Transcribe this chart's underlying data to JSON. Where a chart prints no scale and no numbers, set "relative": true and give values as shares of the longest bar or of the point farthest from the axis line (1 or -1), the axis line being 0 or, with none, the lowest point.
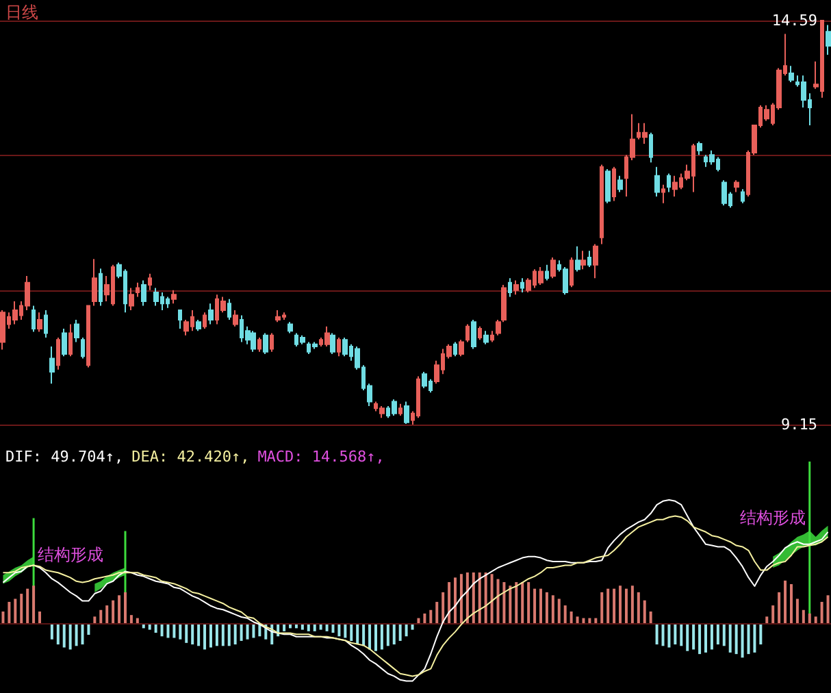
{
  "chart_data": [
    {
      "type": "candlestick",
      "title": "日线",
      "categories": [
        null,
        null,
        null,
        null,
        null,
        null,
        null,
        null,
        null,
        null,
        null,
        null,
        null,
        null,
        null,
        null,
        null,
        null,
        null,
        null,
        null,
        null,
        null,
        null,
        null,
        null,
        null,
        null,
        null,
        null,
        null,
        null,
        null,
        null,
        null,
        null,
        null,
        null,
        null,
        null,
        null,
        null,
        null,
        null,
        null,
        null,
        null,
        null,
        null,
        null,
        null,
        null,
        null,
        null,
        null,
        null,
        null,
        null,
        null,
        null,
        null,
        null,
        null,
        null,
        null,
        null,
        null,
        null,
        null,
        null,
        null,
        null,
        null,
        null,
        null,
        null,
        null,
        null,
        null,
        null,
        null,
        null,
        null,
        null,
        null,
        null,
        null,
        null,
        null,
        null,
        null,
        null,
        null,
        null,
        null,
        null,
        null,
        null,
        null,
        null,
        null,
        null,
        null,
        null,
        null,
        null,
        null,
        null,
        null,
        null,
        null,
        null,
        null,
        null,
        null,
        null,
        null,
        null,
        null,
        null,
        null,
        null,
        null,
        null,
        null,
        null,
        null,
        null,
        null,
        null,
        null,
        null,
        null,
        null,
        null,
        null
      ],
      "ohlc": [
        [
          10.26,
          10.69,
          10.16,
          10.66
        ],
        [
          10.5,
          10.66,
          10.44,
          10.6
        ],
        [
          10.56,
          10.81,
          10.5,
          10.69
        ],
        [
          10.62,
          10.81,
          10.56,
          10.75
        ],
        [
          10.75,
          11.15,
          10.69,
          11.06
        ],
        [
          10.69,
          10.75,
          10.4,
          10.44
        ],
        [
          10.44,
          10.66,
          10.4,
          10.56
        ],
        [
          10.62,
          10.69,
          10.32,
          10.38
        ],
        [
          10.04,
          10.2,
          9.7,
          9.86
        ],
        [
          9.95,
          10.32,
          9.89,
          10.29
        ],
        [
          10.38,
          10.44,
          10.07,
          10.1
        ],
        [
          10.1,
          10.5,
          10.07,
          10.38
        ],
        [
          10.5,
          10.56,
          10.26,
          10.32
        ],
        [
          10.29,
          10.32,
          10.04,
          10.07
        ],
        [
          9.95,
          10.75,
          9.92,
          10.75
        ],
        [
          10.81,
          11.38,
          10.75,
          11.12
        ],
        [
          11.18,
          11.25,
          10.75,
          10.81
        ],
        [
          10.9,
          11.15,
          10.81,
          11.03
        ],
        [
          10.78,
          11.3,
          10.75,
          11.27
        ],
        [
          11.3,
          11.33,
          11.12,
          11.15
        ],
        [
          11.21,
          11.24,
          10.66,
          10.78
        ],
        [
          10.75,
          10.99,
          10.69,
          10.9
        ],
        [
          10.93,
          11.06,
          10.87,
          10.99
        ],
        [
          11.03,
          11.09,
          10.75,
          10.81
        ],
        [
          11.03,
          11.18,
          10.96,
          11.12
        ],
        [
          10.93,
          10.99,
          10.75,
          10.81
        ],
        [
          10.87,
          10.93,
          10.69,
          10.78
        ],
        [
          10.84,
          10.87,
          10.72,
          10.78
        ],
        [
          10.84,
          10.96,
          10.78,
          10.9
        ],
        [
          10.69,
          10.69,
          10.44,
          10.56
        ],
        [
          10.41,
          10.56,
          10.35,
          10.53
        ],
        [
          10.47,
          10.69,
          10.41,
          10.6
        ],
        [
          10.53,
          10.56,
          10.41,
          10.44
        ],
        [
          10.47,
          10.66,
          10.44,
          10.62
        ],
        [
          10.69,
          10.78,
          10.5,
          10.56
        ],
        [
          10.56,
          10.9,
          10.5,
          10.84
        ],
        [
          10.69,
          10.87,
          10.66,
          10.81
        ],
        [
          10.78,
          10.84,
          10.56,
          10.6
        ],
        [
          10.5,
          10.69,
          10.47,
          10.62
        ],
        [
          10.56,
          10.62,
          10.26,
          10.32
        ],
        [
          10.41,
          10.47,
          10.23,
          10.29
        ],
        [
          10.38,
          10.41,
          10.13,
          10.17
        ],
        [
          10.17,
          10.32,
          10.13,
          10.29
        ],
        [
          10.35,
          10.38,
          10.1,
          10.13
        ],
        [
          10.17,
          10.38,
          10.13,
          10.35
        ],
        [
          10.56,
          10.69,
          10.53,
          10.6
        ],
        [
          10.6,
          10.66,
          10.56,
          10.62
        ],
        [
          10.5,
          10.53,
          10.38,
          10.41
        ],
        [
          10.35,
          10.38,
          10.2,
          10.23
        ],
        [
          10.32,
          10.35,
          10.23,
          10.26
        ],
        [
          10.23,
          10.26,
          10.1,
          10.13
        ],
        [
          10.23,
          10.26,
          10.17,
          10.2
        ],
        [
          10.23,
          10.32,
          10.2,
          10.29
        ],
        [
          10.23,
          10.47,
          10.2,
          10.38
        ],
        [
          10.35,
          10.38,
          10.1,
          10.13
        ],
        [
          10.13,
          10.32,
          10.07,
          10.29
        ],
        [
          10.29,
          10.32,
          10.07,
          10.1
        ],
        [
          10.2,
          10.23,
          10.01,
          10.07
        ],
        [
          10.17,
          10.2,
          9.89,
          9.92
        ],
        [
          9.92,
          9.95,
          9.61,
          9.64
        ],
        [
          9.67,
          9.7,
          9.4,
          9.46
        ],
        [
          9.37,
          9.46,
          9.33,
          9.43
        ],
        [
          9.3,
          9.4,
          9.24,
          9.37
        ],
        [
          9.37,
          9.4,
          9.24,
          9.27
        ],
        [
          9.46,
          9.49,
          9.27,
          9.3
        ],
        [
          9.3,
          9.43,
          9.27,
          9.37
        ],
        [
          9.4,
          9.46,
          9.16,
          9.18
        ],
        [
          9.21,
          9.33,
          9.15,
          9.3
        ],
        [
          9.27,
          9.8,
          9.24,
          9.76
        ],
        [
          9.83,
          9.86,
          9.64,
          9.67
        ],
        [
          9.73,
          9.76,
          9.58,
          9.61
        ],
        [
          9.73,
          10.01,
          9.7,
          9.95
        ],
        [
          9.89,
          10.17,
          9.83,
          10.1
        ],
        [
          10.07,
          10.23,
          10.04,
          10.2
        ],
        [
          10.23,
          10.26,
          10.07,
          10.1
        ],
        [
          10.1,
          10.29,
          10.07,
          10.26
        ],
        [
          10.29,
          10.5,
          10.26,
          10.47
        ],
        [
          10.53,
          10.56,
          10.17,
          10.2
        ],
        [
          10.32,
          10.47,
          10.29,
          10.44
        ],
        [
          10.35,
          10.41,
          10.23,
          10.26
        ],
        [
          10.29,
          10.41,
          10.26,
          10.35
        ],
        [
          10.38,
          10.56,
          10.35,
          10.53
        ],
        [
          10.56,
          11.03,
          10.53,
          10.99
        ],
        [
          11.06,
          11.12,
          10.87,
          10.93
        ],
        [
          10.96,
          11.09,
          10.9,
          11.03
        ],
        [
          11.06,
          11.12,
          10.93,
          10.99
        ],
        [
          10.96,
          11.12,
          10.93,
          11.09
        ],
        [
          11.03,
          11.24,
          10.99,
          11.21
        ],
        [
          11.06,
          11.27,
          11.03,
          11.21
        ],
        [
          11.21,
          11.3,
          11.09,
          11.12
        ],
        [
          11.15,
          11.4,
          11.12,
          11.36
        ],
        [
          11.3,
          11.36,
          11.21,
          11.24
        ],
        [
          11.24,
          11.27,
          10.9,
          10.93
        ],
        [
          11.03,
          11.4,
          11.0,
          11.36
        ],
        [
          11.36,
          11.55,
          11.21,
          11.24
        ],
        [
          11.3,
          11.49,
          11.24,
          11.36
        ],
        [
          11.4,
          11.49,
          11.27,
          11.3
        ],
        [
          11.3,
          11.58,
          11.12,
          11.55
        ],
        [
          11.67,
          12.65,
          11.58,
          12.62
        ],
        [
          12.56,
          12.59,
          12.13,
          12.16
        ],
        [
          12.22,
          12.62,
          12.16,
          12.59
        ],
        [
          12.44,
          12.5,
          12.28,
          12.32
        ],
        [
          12.47,
          12.78,
          12.22,
          12.75
        ],
        [
          12.75,
          13.33,
          12.71,
          12.99
        ],
        [
          13.02,
          13.21,
          12.99,
          13.08
        ],
        [
          13.02,
          13.21,
          12.93,
          13.08
        ],
        [
          13.05,
          13.08,
          12.68,
          12.75
        ],
        [
          12.5,
          12.62,
          12.22,
          12.28
        ],
        [
          12.28,
          12.38,
          12.13,
          12.32
        ],
        [
          12.5,
          12.53,
          12.28,
          12.35
        ],
        [
          12.32,
          12.5,
          12.22,
          12.41
        ],
        [
          12.35,
          12.53,
          12.32,
          12.47
        ],
        [
          12.47,
          12.65,
          12.44,
          12.56
        ],
        [
          12.5,
          12.93,
          12.28,
          12.9
        ],
        [
          12.93,
          12.96,
          12.78,
          12.84
        ],
        [
          12.75,
          12.78,
          12.62,
          12.69
        ],
        [
          12.78,
          12.84,
          12.65,
          12.69
        ],
        [
          12.72,
          12.75,
          12.56,
          12.59
        ],
        [
          12.41,
          12.44,
          12.1,
          12.13
        ],
        [
          12.25,
          12.28,
          12.07,
          12.1
        ],
        [
          12.35,
          12.44,
          12.28,
          12.41
        ],
        [
          12.28,
          12.32,
          12.13,
          12.16
        ],
        [
          12.25,
          12.84,
          12.22,
          12.81
        ],
        [
          12.81,
          13.18,
          12.78,
          13.18
        ],
        [
          13.18,
          13.45,
          13.15,
          13.42
        ],
        [
          13.27,
          13.45,
          13.24,
          13.39
        ],
        [
          13.21,
          13.48,
          13.18,
          13.45
        ],
        [
          13.42,
          13.95,
          13.39,
          13.92
        ],
        [
          13.88,
          14.41,
          13.85,
          13.98
        ],
        [
          13.88,
          13.98,
          13.76,
          13.79
        ],
        [
          13.76,
          13.85,
          13.7,
          13.73
        ],
        [
          13.76,
          13.85,
          13.42,
          13.52
        ],
        [
          13.52,
          13.61,
          13.18,
          13.42
        ],
        [
          13.7,
          14.04,
          13.67,
          13.73
        ],
        [
          13.64,
          14.59,
          13.55,
          14.59
        ],
        [
          14.44,
          14.53,
          14.13,
          14.25
        ]
      ],
      "colors": [
        "#e8605a",
        "#e8605a",
        "#e8605a",
        "#e8605a",
        "#e8605a",
        "#70dde4",
        "#e8605a",
        "#70dde4",
        "#70dde4",
        "#e8605a",
        "#70dde4",
        "#e8605a",
        "#70dde4",
        "#70dde4",
        "#e8605a",
        "#e8605a",
        "#70dde4",
        "#e8605a",
        "#e8605a",
        "#70dde4",
        "#70dde4",
        "#e8605a",
        "#e8605a",
        "#70dde4",
        "#e8605a",
        "#70dde4",
        "#70dde4",
        "#70dde4",
        "#e8605a",
        "#70dde4",
        "#e8605a",
        "#e8605a",
        "#70dde4",
        "#e8605a",
        "#70dde4",
        "#e8605a",
        "#e8605a",
        "#70dde4",
        "#e8605a",
        "#70dde4",
        "#70dde4",
        "#70dde4",
        "#e8605a",
        "#70dde4",
        "#e8605a",
        "#e8605a",
        "#e8605a",
        "#70dde4",
        "#70dde4",
        "#70dde4",
        "#70dde4",
        "#70dde4",
        "#e8605a",
        "#e8605a",
        "#70dde4",
        "#e8605a",
        "#70dde4",
        "#70dde4",
        "#70dde4",
        "#70dde4",
        "#70dde4",
        "#e8605a",
        "#e8605a",
        "#70dde4",
        "#70dde4",
        "#e8605a",
        "#70dde4",
        "#e8605a",
        "#e8605a",
        "#70dde4",
        "#70dde4",
        "#e8605a",
        "#e8605a",
        "#e8605a",
        "#70dde4",
        "#e8605a",
        "#e8605a",
        "#70dde4",
        "#e8605a",
        "#70dde4",
        "#e8605a",
        "#e8605a",
        "#e8605a",
        "#70dde4",
        "#e8605a",
        "#70dde4",
        "#e8605a",
        "#e8605a",
        "#e8605a",
        "#70dde4",
        "#e8605a",
        "#70dde4",
        "#70dde4",
        "#e8605a",
        "#70dde4",
        "#e8605a",
        "#70dde4",
        "#e8605a",
        "#e8605a",
        "#70dde4",
        "#e8605a",
        "#70dde4",
        "#e8605a",
        "#e8605a",
        "#e8605a",
        "#e8605a",
        "#70dde4",
        "#70dde4",
        "#e8605a",
        "#70dde4",
        "#e8605a",
        "#e8605a",
        "#e8605a",
        "#e8605a",
        "#70dde4",
        "#70dde4",
        "#70dde4",
        "#70dde4",
        "#70dde4",
        "#70dde4",
        "#e8605a",
        "#70dde4",
        "#e8605a",
        "#e8605a",
        "#e8605a",
        "#e8605a",
        "#e8605a",
        "#e8605a",
        "#e8605a",
        "#70dde4",
        "#70dde4",
        "#70dde4",
        "#70dde4",
        "#e8605a",
        "#e8605a",
        "#70dde4"
      ],
      "ylim": [
        9.15,
        14.59
      ],
      "yticks": [
        9.15,
        {
          "value": 10.96,
          "label": null
        },
        {
          "value": 12.78,
          "label": null
        },
        14.59
      ],
      "grid": "y",
      "tick_labels": "y"
    },
    {
      "type": "bar",
      "relative": true,
      "categories": [
        null,
        null,
        null,
        null,
        null,
        null,
        null,
        null,
        null,
        null,
        null,
        null,
        null,
        null,
        null,
        null,
        null,
        null,
        null,
        null,
        null,
        null,
        null,
        null,
        null,
        null,
        null,
        null,
        null,
        null,
        null,
        null,
        null,
        null,
        null,
        null,
        null,
        null,
        null,
        null,
        null,
        null,
        null,
        null,
        null,
        null,
        null,
        null,
        null,
        null,
        null,
        null,
        null,
        null,
        null,
        null,
        null,
        null,
        null,
        null,
        null,
        null,
        null,
        null,
        null,
        null,
        null,
        null,
        null,
        null,
        null,
        null,
        null,
        null,
        null,
        null,
        null,
        null,
        null,
        null,
        null,
        null,
        null,
        null,
        null,
        null,
        null,
        null,
        null,
        null,
        null,
        null,
        null,
        null,
        null,
        null,
        null,
        null,
        null,
        null,
        null,
        null,
        null,
        null,
        null,
        null,
        null,
        null,
        null,
        null,
        null,
        null,
        null,
        null,
        null,
        null,
        null,
        null,
        null,
        null,
        null,
        null,
        null,
        null,
        null,
        null,
        null,
        null,
        null,
        null,
        null,
        null,
        null,
        null,
        null,
        null
      ],
      "values": [
        0.23,
        0.42,
        0.48,
        0.58,
        0.68,
        0.74,
        0.23,
        0,
        -0.32,
        -0.42,
        -0.48,
        -0.52,
        -0.45,
        -0.42,
        -0.23,
        0.13,
        0.26,
        0.35,
        0.45,
        0.55,
        0.61,
        0.16,
        0.1,
        -0.1,
        -0.13,
        -0.19,
        -0.26,
        -0.29,
        -0.29,
        -0.32,
        -0.39,
        -0.42,
        -0.45,
        -0.52,
        -0.48,
        -0.45,
        -0.45,
        -0.45,
        -0.42,
        -0.35,
        -0.32,
        -0.29,
        -0.26,
        -0.32,
        -0.42,
        -0.26,
        -0.16,
        -0.1,
        -0.1,
        -0.13,
        -0.16,
        -0.16,
        -0.13,
        -0.16,
        -0.19,
        -0.26,
        -0.29,
        -0.35,
        -0.42,
        -0.45,
        -0.52,
        -0.55,
        -0.52,
        -0.45,
        -0.42,
        -0.35,
        -0.26,
        -0.13,
        0.1,
        0.19,
        0.26,
        0.42,
        0.61,
        0.81,
        0.9,
        0.97,
        1,
        1,
        1,
        1,
        0.97,
        0.87,
        0.81,
        0.74,
        0.81,
        0.81,
        0.81,
        0.68,
        0.68,
        0.61,
        0.55,
        0.48,
        0.35,
        0.23,
        0.13,
        0.1,
        0.1,
        0.1,
        0.61,
        0.68,
        0.68,
        0.74,
        0.68,
        0.74,
        0.61,
        0.45,
        0.23,
        -0.42,
        -0.45,
        -0.48,
        -0.42,
        -0.45,
        -0.55,
        -0.52,
        -0.61,
        -0.58,
        -0.52,
        -0.42,
        -0.45,
        -0.58,
        -0.61,
        -0.68,
        -0.61,
        -0.58,
        -0.42,
        0.13,
        0.35,
        0.61,
        0.84,
        0.77,
        0.48,
        0.26,
        0.19,
        0.13,
        0.42,
        0.55
      ],
      "colors": [
        "#d9796f",
        "#d9796f",
        "#d9796f",
        "#d9796f",
        "#d9796f",
        "#d9796f",
        "#d9796f",
        "#d9796f",
        "#9be6ea",
        "#9be6ea",
        "#9be6ea",
        "#9be6ea",
        "#9be6ea",
        "#9be6ea",
        "#9be6ea",
        "#d9796f",
        "#d9796f",
        "#d9796f",
        "#d9796f",
        "#d9796f",
        "#d9796f",
        "#d9796f",
        "#d9796f",
        "#9be6ea",
        "#9be6ea",
        "#9be6ea",
        "#9be6ea",
        "#9be6ea",
        "#9be6ea",
        "#9be6ea",
        "#9be6ea",
        "#9be6ea",
        "#9be6ea",
        "#9be6ea",
        "#9be6ea",
        "#9be6ea",
        "#9be6ea",
        "#9be6ea",
        "#9be6ea",
        "#9be6ea",
        "#9be6ea",
        "#9be6ea",
        "#9be6ea",
        "#9be6ea",
        "#9be6ea",
        "#9be6ea",
        "#9be6ea",
        "#9be6ea",
        "#9be6ea",
        "#9be6ea",
        "#9be6ea",
        "#9be6ea",
        "#9be6ea",
        "#9be6ea",
        "#9be6ea",
        "#9be6ea",
        "#9be6ea",
        "#9be6ea",
        "#9be6ea",
        "#9be6ea",
        "#9be6ea",
        "#9be6ea",
        "#9be6ea",
        "#9be6ea",
        "#9be6ea",
        "#9be6ea",
        "#9be6ea",
        "#9be6ea",
        "#d9796f",
        "#d9796f",
        "#d9796f",
        "#d9796f",
        "#d9796f",
        "#d9796f",
        "#d9796f",
        "#d9796f",
        "#d9796f",
        "#d9796f",
        "#d9796f",
        "#d9796f",
        "#d9796f",
        "#d9796f",
        "#d9796f",
        "#d9796f",
        "#d9796f",
        "#d9796f",
        "#d9796f",
        "#d9796f",
        "#d9796f",
        "#d9796f",
        "#d9796f",
        "#d9796f",
        "#d9796f",
        "#d9796f",
        "#d9796f",
        "#d9796f",
        "#d9796f",
        "#d9796f",
        "#d9796f",
        "#d9796f",
        "#d9796f",
        "#d9796f",
        "#d9796f",
        "#d9796f",
        "#d9796f",
        "#d9796f",
        "#d9796f",
        "#9be6ea",
        "#9be6ea",
        "#9be6ea",
        "#9be6ea",
        "#9be6ea",
        "#9be6ea",
        "#9be6ea",
        "#9be6ea",
        "#9be6ea",
        "#9be6ea",
        "#9be6ea",
        "#9be6ea",
        "#9be6ea",
        "#9be6ea",
        "#9be6ea",
        "#9be6ea",
        "#9be6ea",
        "#9be6ea",
        "#d9796f",
        "#d9796f",
        "#d9796f",
        "#d9796f",
        "#d9796f",
        "#d9796f",
        "#d9796f",
        "#d9796f",
        "#d9796f",
        "#d9796f",
        "#d9796f"
      ]
    },
    {
      "type": "bar",
      "relative": true,
      "color": "#3ddc3d",
      "annotations": [
        "结构形成",
        "结构形成"
      ],
      "categories": [
        null,
        null,
        null,
        null,
        null,
        null,
        null,
        null,
        null,
        null,
        null,
        null,
        null,
        null,
        null,
        null,
        null,
        null,
        null,
        null,
        null,
        null,
        null,
        null,
        null,
        null,
        null,
        null,
        null,
        null,
        null,
        null,
        null,
        null,
        null,
        null,
        null,
        null,
        null,
        null,
        null,
        null,
        null,
        null,
        null,
        null,
        null,
        null,
        null,
        null,
        null,
        null,
        null,
        null,
        null,
        null,
        null,
        null,
        null,
        null,
        null,
        null,
        null,
        null,
        null,
        null,
        null,
        null,
        null,
        null,
        null,
        null,
        null,
        null,
        null,
        null,
        null,
        null,
        null,
        null,
        null,
        null,
        null,
        null,
        null,
        null,
        null,
        null,
        null,
        null,
        null,
        null,
        null,
        null,
        null,
        null,
        null,
        null,
        null,
        null,
        null,
        null,
        null,
        null,
        null,
        null,
        null,
        null,
        null,
        null,
        null,
        null,
        null,
        null,
        null,
        null,
        null,
        null,
        null,
        null,
        null,
        null,
        null,
        null,
        null,
        null,
        null,
        null,
        null,
        null,
        null,
        null,
        null,
        null,
        null,
        null
      ],
      "values": [
        null,
        null,
        null,
        null,
        null,
        0.65,
        null,
        null,
        null,
        null,
        null,
        null,
        null,
        null,
        null,
        null,
        null,
        null,
        null,
        null,
        0.57,
        null,
        null,
        null,
        null,
        null,
        null,
        null,
        null,
        null,
        null,
        null,
        null,
        null,
        null,
        null,
        null,
        null,
        null,
        null,
        null,
        null,
        null,
        null,
        null,
        null,
        null,
        null,
        null,
        null,
        null,
        null,
        null,
        null,
        null,
        null,
        null,
        null,
        null,
        null,
        null,
        null,
        null,
        null,
        null,
        null,
        null,
        null,
        null,
        null,
        null,
        null,
        null,
        null,
        null,
        null,
        null,
        null,
        null,
        null,
        null,
        null,
        null,
        null,
        null,
        null,
        null,
        null,
        null,
        null,
        null,
        null,
        null,
        null,
        null,
        null,
        null,
        null,
        null,
        null,
        null,
        null,
        null,
        null,
        null,
        null,
        null,
        null,
        null,
        null,
        null,
        null,
        null,
        null,
        null,
        null,
        null,
        null,
        null,
        null,
        null,
        null,
        null,
        null,
        null,
        null,
        null,
        null,
        null,
        null,
        null,
        null,
        1,
        null,
        null,
        null
      ]
    },
    {
      "type": "line",
      "relative": true,
      "annotations": [
        "DIF: 49.704↑,",
        "DEA: 42.420↑,",
        "MACD: 14.568↑,"
      ],
      "categories": [
        null,
        null,
        null,
        null,
        null,
        null,
        null,
        null,
        null,
        null,
        null,
        null,
        null,
        null,
        null,
        null,
        null,
        null,
        null,
        null,
        null,
        null,
        null,
        null,
        null,
        null,
        null,
        null,
        null,
        null,
        null,
        null,
        null,
        null,
        null,
        null,
        null,
        null,
        null,
        null,
        null,
        null,
        null,
        null,
        null,
        null,
        null,
        null,
        null,
        null,
        null,
        null,
        null,
        null,
        null,
        null,
        null,
        null,
        null,
        null,
        null,
        null,
        null,
        null,
        null,
        null,
        null,
        null,
        null,
        null,
        null,
        null,
        null,
        null,
        null,
        null,
        null,
        null,
        null,
        null,
        null,
        null,
        null,
        null,
        null,
        null,
        null,
        null,
        null,
        null,
        null,
        null,
        null,
        null,
        null,
        null,
        null,
        null,
        null,
        null,
        null,
        null,
        null,
        null,
        null,
        null,
        null,
        null,
        null,
        null,
        null,
        null,
        null,
        null,
        null,
        null,
        null,
        null,
        null,
        null,
        null,
        null,
        null,
        null,
        null,
        null,
        null,
        null,
        null,
        null,
        null,
        null,
        null,
        null,
        null,
        null
      ],
      "series": [
        {
          "color": "#ffffff",
          "values": [
            0.33,
            0.37,
            0.41,
            0.42,
            0.46,
            0.47,
            0.45,
            0.41,
            0.36,
            0.33,
            0.29,
            0.25,
            0.22,
            0.18,
            0.18,
            0.24,
            0.26,
            0.32,
            0.34,
            0.39,
            0.42,
            0.41,
            0.39,
            0.38,
            0.36,
            0.34,
            0.33,
            0.32,
            0.29,
            0.28,
            0.25,
            0.22,
            0.2,
            0.17,
            0.14,
            0.12,
            0.11,
            0.09,
            0.07,
            0.05,
            0.04,
            0.01,
            -0.01,
            -0.04,
            -0.07,
            -0.08,
            -0.09,
            -0.09,
            -0.11,
            -0.11,
            -0.11,
            -0.11,
            -0.11,
            -0.12,
            -0.12,
            -0.13,
            -0.14,
            -0.18,
            -0.21,
            -0.25,
            -0.3,
            -0.33,
            -0.37,
            -0.41,
            -0.43,
            -0.46,
            -0.47,
            -0.47,
            -0.42,
            -0.37,
            -0.25,
            -0.11,
            0.01,
            0.09,
            0.14,
            0.21,
            0.26,
            0.32,
            0.36,
            0.39,
            0.42,
            0.45,
            0.47,
            0.49,
            0.51,
            0.53,
            0.54,
            0.54,
            0.53,
            0.51,
            0.5,
            0.5,
            0.5,
            0.49,
            0.49,
            0.49,
            0.5,
            0.5,
            0.51,
            0.61,
            0.67,
            0.72,
            0.76,
            0.79,
            0.82,
            0.84,
            0.89,
            0.96,
            0.99,
            1,
            0.99,
            0.96,
            0.87,
            0.78,
            0.71,
            0.64,
            0.63,
            0.62,
            0.62,
            0.59,
            0.53,
            0.46,
            0.37,
            0.3,
            0.39,
            0.46,
            0.5,
            0.55,
            0.61,
            0.64,
            0.66,
            0.64,
            0.64,
            0.66,
            0.68,
            0.74
          ],
          "lower": [
            0.32,
            0.34,
            0.38,
            0.41,
            0.45,
            0.47,
            null,
            null,
            null,
            null,
            null,
            null,
            null,
            null,
            null,
            0.25,
            0.28,
            0.32,
            0.34,
            0.37,
            0.39,
            null,
            null,
            null,
            null,
            null,
            null,
            null,
            null,
            null,
            null,
            null,
            null,
            null,
            null,
            null,
            null,
            null,
            null,
            null,
            null,
            null,
            null,
            null,
            null,
            null,
            null,
            null,
            null,
            null,
            null,
            null,
            null,
            null,
            null,
            null,
            null,
            null,
            null,
            null,
            null,
            null,
            null,
            null,
            null,
            null,
            null,
            null,
            null,
            null,
            null,
            null,
            null,
            null,
            null,
            null,
            null,
            null,
            null,
            null,
            null,
            null,
            null,
            null,
            null,
            null,
            null,
            null,
            null,
            null,
            null,
            null,
            null,
            null,
            null,
            null,
            null,
            null,
            null,
            null,
            null,
            null,
            null,
            null,
            null,
            null,
            null,
            null,
            null,
            null,
            null,
            null,
            null,
            null,
            null,
            null,
            null,
            null,
            null,
            null,
            null,
            null,
            null,
            null,
            null,
            null,
            0.45,
            0.47,
            0.51,
            0.55,
            0.59,
            0.62,
            0.63,
            0.63,
            0.66,
            0.7
          ],
          "upper": [
            0.39,
            0.42,
            0.45,
            0.47,
            0.51,
            0.54,
            null,
            null,
            null,
            null,
            null,
            null,
            null,
            null,
            null,
            0.32,
            0.34,
            0.38,
            0.41,
            0.43,
            0.45,
            null,
            null,
            null,
            null,
            null,
            null,
            null,
            null,
            null,
            null,
            null,
            null,
            null,
            null,
            null,
            null,
            null,
            null,
            null,
            null,
            null,
            null,
            null,
            null,
            null,
            null,
            null,
            null,
            null,
            null,
            null,
            null,
            null,
            null,
            null,
            null,
            null,
            null,
            null,
            null,
            null,
            null,
            null,
            null,
            null,
            null,
            null,
            null,
            null,
            null,
            null,
            null,
            null,
            null,
            null,
            null,
            null,
            null,
            null,
            null,
            null,
            null,
            null,
            null,
            null,
            null,
            null,
            null,
            null,
            null,
            null,
            null,
            null,
            null,
            null,
            null,
            null,
            null,
            null,
            null,
            null,
            null,
            null,
            null,
            null,
            null,
            null,
            null,
            null,
            null,
            null,
            null,
            null,
            null,
            null,
            null,
            null,
            null,
            null,
            null,
            null,
            null,
            null,
            null,
            null,
            0.54,
            0.57,
            0.61,
            0.66,
            0.7,
            0.72,
            0.75,
            0.7,
            0.75,
            0.79
          ]
        },
        {
          "color": "#f5f0a0",
          "values": [
            0.41,
            0.41,
            0.42,
            0.45,
            0.46,
            0.47,
            0.46,
            0.43,
            0.42,
            0.41,
            0.39,
            0.37,
            0.34,
            0.33,
            0.34,
            0.36,
            0.37,
            0.38,
            0.39,
            0.41,
            0.41,
            0.41,
            0.41,
            0.39,
            0.38,
            0.37,
            0.34,
            0.33,
            0.32,
            0.3,
            0.28,
            0.25,
            0.24,
            0.22,
            0.2,
            0.18,
            0.16,
            0.13,
            0.11,
            0.09,
            0.05,
            0.04,
            0,
            -0.03,
            -0.05,
            -0.08,
            -0.08,
            -0.08,
            -0.09,
            -0.09,
            -0.09,
            -0.11,
            -0.11,
            -0.11,
            -0.12,
            -0.13,
            -0.14,
            -0.16,
            -0.17,
            -0.18,
            -0.21,
            -0.25,
            -0.29,
            -0.33,
            -0.37,
            -0.41,
            -0.42,
            -0.43,
            -0.42,
            -0.39,
            -0.37,
            -0.26,
            -0.18,
            -0.12,
            -0.07,
            -0.01,
            0.04,
            0.08,
            0.11,
            0.14,
            0.18,
            0.22,
            0.25,
            0.28,
            0.3,
            0.33,
            0.36,
            0.38,
            0.41,
            0.45,
            0.45,
            0.46,
            0.47,
            0.47,
            0.49,
            0.49,
            0.51,
            0.53,
            0.54,
            0.55,
            0.59,
            0.64,
            0.7,
            0.74,
            0.78,
            0.8,
            0.82,
            0.84,
            0.84,
            0.86,
            0.87,
            0.86,
            0.83,
            0.78,
            0.76,
            0.74,
            0.71,
            0.7,
            0.68,
            0.66,
            0.63,
            0.62,
            0.59,
            0.5,
            0.43,
            0.43,
            0.47,
            0.49,
            0.5,
            0.55,
            0.62,
            0.62,
            0.63,
            0.64,
            0.66,
            0.7
          ]
        }
      ]
    }
  ]
}
